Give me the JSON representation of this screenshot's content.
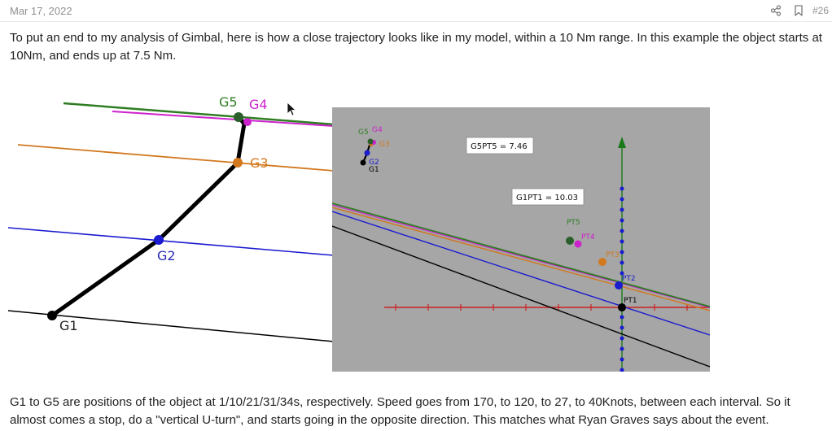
{
  "post": {
    "date": "Mar 17, 2022",
    "number": "#26",
    "paragraph_1": "To put an end to my analysis of Gimbal, here is how a close trajectory looks like in my model, within a 10 Nm range. In this example the object starts at 10Nm, and ends up at 7.5 Nm.",
    "paragraph_2": "G1 to G5 are positions of the object at 1/10/21/31/34s, respectively. Speed goes from 170, to 120, to 27, to 40Knots, between each interval. So it almost comes a stop, do a \"vertical U-turn\", and starts going in the opposite direction. This matches what Ryan Graves says about the event."
  },
  "icons": {
    "share": "share-icon",
    "bookmark": "bookmark-icon",
    "cursor": "mouse-cursor-icon"
  },
  "figure": {
    "left_diagram": {
      "labels": {
        "g1": "G1",
        "g2": "G2",
        "g3": "G3",
        "g4": "G4",
        "g5": "G5"
      }
    },
    "right_plot": {
      "labels": {
        "g5": "G5",
        "g4": "G4",
        "g3": "G3",
        "g2": "G2",
        "g1": "G1",
        "pt5": "PT5",
        "pt4": "PT4",
        "pt3": "PT3",
        "pt2": "PT2",
        "pt1": "PT1"
      },
      "distance_g5pt5": "G5PT5 = 7.46",
      "distance_g1pt1": "G1PT1 = 10.03"
    },
    "colors": {
      "green": "#2e7d22",
      "magenta": "#cc22cc",
      "orange": "#d2781e",
      "blue": "#1b1bd0",
      "black": "#000000",
      "red_axis": "#cc2222",
      "green_axis": "#1a7a1a",
      "plot_background": "#a6a6a6"
    }
  }
}
